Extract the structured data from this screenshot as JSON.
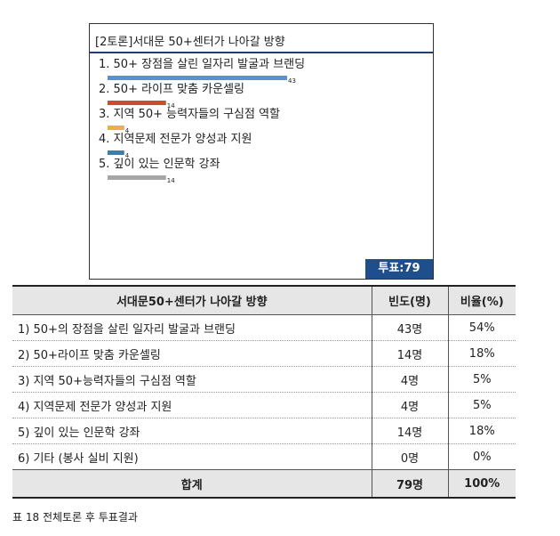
{
  "panel": {
    "title": "[2토론]서대문 50+센터가 나아갈 방향",
    "vote_total": "투표:79"
  },
  "chart_data": {
    "type": "bar",
    "orientation": "horizontal",
    "title": "[2토론]서대문 50+센터가 나아갈 방향",
    "categories": [
      "1. 50+ 장점을 살린 일자리 발굴과 브랜딩",
      "2. 50+ 라이프 맞춤 카운셀링",
      "3. 지역 50+ 능력자들의 구심점 역할",
      "4. 지역문제 전문가 양성과 지원",
      "5. 깊이 있는 인문학 강좌"
    ],
    "values": [
      43,
      14,
      4,
      4,
      14
    ],
    "colors": [
      "#5b8fd6",
      "#c94f2c",
      "#e8b04a",
      "#3f7ea6",
      "#a6a6a6"
    ],
    "total": 79
  },
  "table": {
    "headers": [
      "서대문50+센터가 나아갈 방향",
      "빈도(명)",
      "비율(%)"
    ],
    "rows": [
      [
        "1) 50+의 장점을 살린 일자리 발굴과 브랜딩",
        "43명",
        "54%"
      ],
      [
        "2) 50+라이프 맞춤 카운셀링",
        "14명",
        "18%"
      ],
      [
        "3) 지역 50+능력자들의 구심점 역할",
        "4명",
        "5%"
      ],
      [
        "4) 지역문제 전문가 양성과 지원",
        "4명",
        "5%"
      ],
      [
        "5) 깊이 있는 인문학 강좌",
        "14명",
        "18%"
      ],
      [
        "6) 기타 (봉사 실비 지원)",
        "0명",
        "0%"
      ]
    ],
    "total": [
      "합계",
      "79명",
      "100%"
    ]
  },
  "caption": "표 18 전체토론 후 투표결과"
}
